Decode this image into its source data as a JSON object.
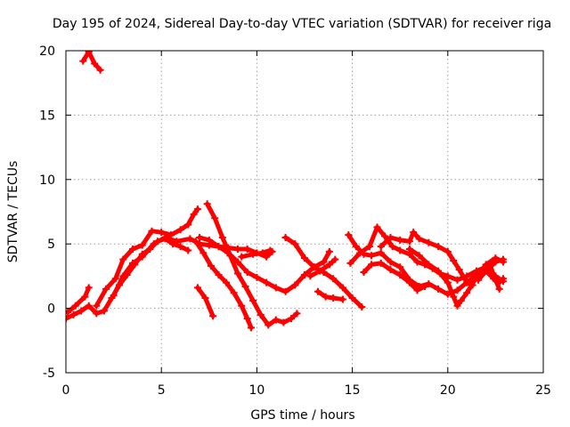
{
  "chart_data": {
    "type": "scatter",
    "title": "Day 195 of 2024, Sidereal Day-to-day VTEC variation (SDTVAR) for receiver riga",
    "xlabel": "GPS time / hours",
    "ylabel": "SDTVAR / TECUs",
    "xlim": [
      0,
      25
    ],
    "ylim": [
      -5,
      20
    ],
    "xticks": [
      "0",
      "5",
      "10",
      "15",
      "20",
      "25"
    ],
    "yticks": [
      "-5",
      "0",
      "5",
      "10",
      "15",
      "20"
    ],
    "grid": true,
    "color": "#ff0000",
    "series": [
      {
        "name": "trace-1",
        "points": [
          [
            0.9,
            19.2
          ],
          [
            1.2,
            19.9
          ],
          [
            1.5,
            19.0
          ],
          [
            1.8,
            18.5
          ]
        ]
      },
      {
        "name": "trace-2",
        "points": [
          [
            0.0,
            -0.8
          ],
          [
            0.4,
            -0.5
          ],
          [
            0.8,
            -0.2
          ],
          [
            1.2,
            0.2
          ],
          [
            1.6,
            -0.4
          ],
          [
            2.0,
            -0.2
          ],
          [
            2.4,
            0.8
          ],
          [
            2.8,
            1.8
          ],
          [
            3.2,
            2.6
          ],
          [
            3.6,
            3.4
          ],
          [
            4.0,
            4.2
          ],
          [
            4.4,
            4.6
          ],
          [
            4.8,
            5.2
          ],
          [
            5.2,
            5.4
          ],
          [
            5.6,
            5.0
          ],
          [
            6.0,
            4.8
          ],
          [
            6.4,
            4.5
          ]
        ]
      },
      {
        "name": "trace-3",
        "points": [
          [
            0.1,
            -0.3
          ],
          [
            0.5,
            0.2
          ],
          [
            1.0,
            0.9
          ],
          [
            1.2,
            1.6
          ]
        ]
      },
      {
        "name": "trace-4",
        "points": [
          [
            1.6,
            0.2
          ],
          [
            2.1,
            1.5
          ],
          [
            2.6,
            2.3
          ],
          [
            3.0,
            3.8
          ],
          [
            3.5,
            4.6
          ],
          [
            4.0,
            4.9
          ],
          [
            4.5,
            6.0
          ],
          [
            5.0,
            5.9
          ],
          [
            5.5,
            5.7
          ],
          [
            6.0,
            6.1
          ],
          [
            6.4,
            6.5
          ],
          [
            6.7,
            7.3
          ],
          [
            6.9,
            7.7
          ]
        ]
      },
      {
        "name": "trace-5",
        "points": [
          [
            2.5,
            1.0
          ],
          [
            3.0,
            2.5
          ],
          [
            3.5,
            3.5
          ],
          [
            4.0,
            4.0
          ],
          [
            4.6,
            5.0
          ],
          [
            5.2,
            5.5
          ],
          [
            5.8,
            5.2
          ],
          [
            6.5,
            5.4
          ],
          [
            7.0,
            5.0
          ],
          [
            7.5,
            4.9
          ],
          [
            8.0,
            4.8
          ],
          [
            8.5,
            4.7
          ],
          [
            9.0,
            4.6
          ],
          [
            9.5,
            4.6
          ],
          [
            10.0,
            4.3
          ],
          [
            10.5,
            4.0
          ],
          [
            10.8,
            4.4
          ]
        ]
      },
      {
        "name": "trace-6",
        "points": [
          [
            6.8,
            5.2
          ],
          [
            7.2,
            4.3
          ],
          [
            7.6,
            3.3
          ],
          [
            8.0,
            2.6
          ],
          [
            8.4,
            2.0
          ],
          [
            8.8,
            1.2
          ],
          [
            9.2,
            0.2
          ],
          [
            9.5,
            -0.8
          ],
          [
            9.7,
            -1.5
          ]
        ]
      },
      {
        "name": "trace-7",
        "points": [
          [
            7.4,
            8.1
          ],
          [
            7.8,
            7.0
          ],
          [
            8.2,
            5.5
          ],
          [
            8.6,
            4.1
          ],
          [
            9.0,
            2.7
          ],
          [
            9.4,
            1.7
          ],
          [
            9.8,
            0.6
          ],
          [
            10.2,
            -0.5
          ],
          [
            10.6,
            -1.3
          ],
          [
            11.0,
            -0.9
          ],
          [
            11.4,
            -1.1
          ],
          [
            11.8,
            -0.8
          ],
          [
            12.1,
            -0.4
          ]
        ]
      },
      {
        "name": "trace-8",
        "points": [
          [
            7.0,
            5.5
          ],
          [
            7.5,
            5.3
          ],
          [
            8.0,
            4.8
          ],
          [
            8.5,
            4.3
          ],
          [
            9.0,
            3.6
          ],
          [
            9.5,
            2.8
          ],
          [
            10.0,
            2.4
          ],
          [
            10.5,
            2.0
          ],
          [
            11.0,
            1.6
          ],
          [
            11.5,
            1.3
          ],
          [
            12.0,
            1.8
          ],
          [
            12.5,
            2.6
          ],
          [
            13.0,
            3.2
          ],
          [
            13.5,
            3.6
          ],
          [
            13.8,
            4.4
          ]
        ]
      },
      {
        "name": "trace-9",
        "points": [
          [
            6.9,
            1.6
          ],
          [
            7.3,
            0.8
          ],
          [
            7.7,
            -0.6
          ]
        ]
      },
      {
        "name": "trace-10",
        "points": [
          [
            9.2,
            4.0
          ],
          [
            9.8,
            4.2
          ],
          [
            10.3,
            4.3
          ],
          [
            10.7,
            4.5
          ]
        ]
      },
      {
        "name": "trace-11",
        "points": [
          [
            11.5,
            5.5
          ],
          [
            12.0,
            5.0
          ],
          [
            12.5,
            3.9
          ],
          [
            13.0,
            3.2
          ],
          [
            13.5,
            2.8
          ],
          [
            14.0,
            2.3
          ],
          [
            14.5,
            1.6
          ],
          [
            15.0,
            0.8
          ],
          [
            15.5,
            0.1
          ]
        ]
      },
      {
        "name": "trace-12",
        "points": [
          [
            12.8,
            2.5
          ],
          [
            13.3,
            2.9
          ],
          [
            13.8,
            3.4
          ],
          [
            14.1,
            3.8
          ]
        ]
      },
      {
        "name": "trace-13",
        "points": [
          [
            13.2,
            1.3
          ],
          [
            13.6,
            0.9
          ],
          [
            14.0,
            0.8
          ],
          [
            14.5,
            0.7
          ]
        ]
      },
      {
        "name": "trace-14",
        "points": [
          [
            14.8,
            5.7
          ],
          [
            15.2,
            4.8
          ],
          [
            15.6,
            4.2
          ],
          [
            16.0,
            4.1
          ],
          [
            16.5,
            4.3
          ],
          [
            17.0,
            3.6
          ],
          [
            17.5,
            3.2
          ],
          [
            18.0,
            2.2
          ],
          [
            18.5,
            1.7
          ],
          [
            19.0,
            1.9
          ],
          [
            19.5,
            1.5
          ],
          [
            20.0,
            1.1
          ],
          [
            20.5,
            1.4
          ],
          [
            21.0,
            2.0
          ],
          [
            21.5,
            2.6
          ],
          [
            22.0,
            2.9
          ],
          [
            22.5,
            3.6
          ],
          [
            22.9,
            3.8
          ]
        ]
      },
      {
        "name": "trace-15",
        "points": [
          [
            14.9,
            3.5
          ],
          [
            15.4,
            4.3
          ],
          [
            15.9,
            4.8
          ],
          [
            16.3,
            6.3
          ],
          [
            16.7,
            5.6
          ],
          [
            17.1,
            4.8
          ],
          [
            17.5,
            4.5
          ],
          [
            18.0,
            4.2
          ],
          [
            18.4,
            3.6
          ],
          [
            18.8,
            3.4
          ],
          [
            19.2,
            3.1
          ],
          [
            19.6,
            2.7
          ],
          [
            20.0,
            2.5
          ],
          [
            20.5,
            2.2
          ],
          [
            21.0,
            2.5
          ],
          [
            21.5,
            2.9
          ],
          [
            22.0,
            3.2
          ],
          [
            22.5,
            2.5
          ],
          [
            22.9,
            2.1
          ]
        ]
      },
      {
        "name": "trace-16",
        "points": [
          [
            15.6,
            2.8
          ],
          [
            16.0,
            3.4
          ],
          [
            16.5,
            3.5
          ],
          [
            17.0,
            3.0
          ],
          [
            17.5,
            2.6
          ],
          [
            18.0,
            2.0
          ],
          [
            18.4,
            1.4
          ],
          [
            18.8,
            1.7
          ]
        ]
      },
      {
        "name": "trace-17",
        "points": [
          [
            16.5,
            4.8
          ],
          [
            17.0,
            5.5
          ],
          [
            17.5,
            5.3
          ],
          [
            18.0,
            5.2
          ],
          [
            18.2,
            5.9
          ],
          [
            18.5,
            5.4
          ],
          [
            19.0,
            5.1
          ],
          [
            19.5,
            4.8
          ],
          [
            20.0,
            4.4
          ],
          [
            20.3,
            3.7
          ],
          [
            20.6,
            3.0
          ],
          [
            21.0,
            2.0
          ],
          [
            21.3,
            1.8
          ]
        ]
      },
      {
        "name": "trace-18",
        "points": [
          [
            18.0,
            4.6
          ],
          [
            18.5,
            4.1
          ],
          [
            19.0,
            3.4
          ],
          [
            19.5,
            2.9
          ],
          [
            20.0,
            2.0
          ],
          [
            20.3,
            0.9
          ],
          [
            20.5,
            0.2
          ],
          [
            20.7,
            0.6
          ],
          [
            21.0,
            1.2
          ],
          [
            21.5,
            2.4
          ],
          [
            22.0,
            3.4
          ],
          [
            22.5,
            3.9
          ],
          [
            22.9,
            3.6
          ]
        ]
      },
      {
        "name": "trace-19",
        "points": [
          [
            21.6,
            2.2
          ],
          [
            22.0,
            2.9
          ],
          [
            22.4,
            2.3
          ],
          [
            22.7,
            2.0
          ],
          [
            22.9,
            2.3
          ]
        ]
      },
      {
        "name": "trace-20",
        "points": [
          [
            22.2,
            3.4
          ],
          [
            22.5,
            2.2
          ],
          [
            22.7,
            1.5
          ]
        ]
      }
    ]
  }
}
